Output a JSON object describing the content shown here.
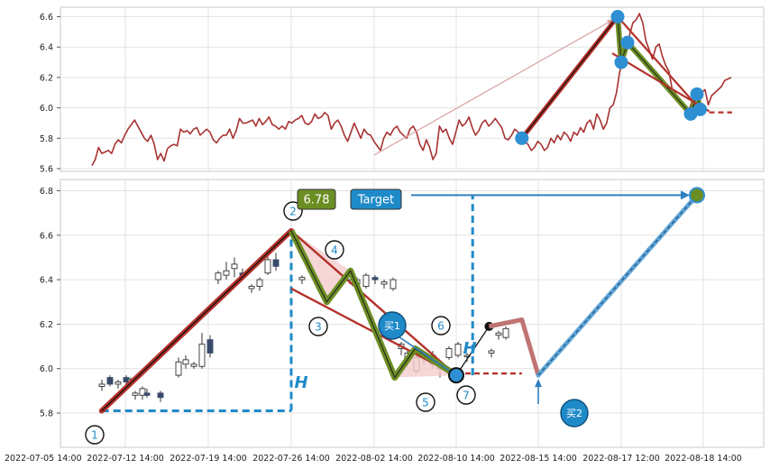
{
  "chart_data": [
    {
      "type": "line",
      "panel": "top",
      "ylim": [
        5.6,
        6.65
      ],
      "yticks": [
        "5.6",
        "5.8",
        "6.0",
        "6.2",
        "6.4",
        "6.6"
      ],
      "grid": true,
      "price_series": [
        5.62,
        5.66,
        5.74,
        5.7,
        5.71,
        5.72,
        5.7,
        5.76,
        5.79,
        5.77,
        5.82,
        5.86,
        5.89,
        5.92,
        5.88,
        5.84,
        5.8,
        5.78,
        5.82,
        5.76,
        5.66,
        5.7,
        5.65,
        5.73,
        5.75,
        5.76,
        5.75,
        5.86,
        5.84,
        5.85,
        5.83,
        5.86,
        5.87,
        5.82,
        5.84,
        5.86,
        5.84,
        5.79,
        5.77,
        5.8,
        5.82,
        5.82,
        5.86,
        5.8,
        5.85,
        5.93,
        5.9,
        5.9,
        5.91,
        5.92,
        5.88,
        5.93,
        5.89,
        5.91,
        5.94,
        5.89,
        5.88,
        5.86,
        5.88,
        5.86,
        5.91,
        5.9,
        5.92,
        5.93,
        5.95,
        5.9,
        5.89,
        5.91,
        5.96,
        5.93,
        5.94,
        5.97,
        5.95,
        5.86,
        5.9,
        5.92,
        5.88,
        5.82,
        5.78,
        5.84,
        5.9,
        5.85,
        5.8,
        5.86,
        5.83,
        5.82,
        5.78,
        5.75,
        5.72,
        5.8,
        5.84,
        5.82,
        5.86,
        5.88,
        5.84,
        5.82,
        5.8,
        5.86,
        5.88,
        5.84,
        5.76,
        5.72,
        5.79,
        5.74,
        5.66,
        5.7,
        5.88,
        5.84,
        5.86,
        5.8,
        5.76,
        5.84,
        5.92,
        5.88,
        5.9,
        5.94,
        5.87,
        5.82,
        5.85,
        5.9,
        5.92,
        5.88,
        5.9,
        5.93,
        5.9,
        5.87,
        5.8,
        5.79,
        5.82,
        5.86,
        5.84,
        5.8,
        5.78,
        5.76,
        5.72,
        5.74,
        5.78,
        5.76,
        5.72,
        5.74,
        5.8,
        5.77,
        5.82,
        5.79,
        5.84,
        5.82,
        5.78,
        5.84,
        5.82,
        5.87,
        5.84,
        5.9,
        5.92,
        5.86,
        5.96,
        5.92,
        5.86,
        5.9,
        6.0,
        6.02,
        6.1,
        6.24,
        6.3,
        6.4,
        6.48,
        6.56,
        6.58,
        6.62,
        6.56,
        6.44,
        6.38,
        6.32,
        6.4,
        6.42,
        6.34,
        6.28,
        6.24,
        6.12,
        6.1,
        6.03,
        6.02,
        6.0,
        5.98,
        6.04,
        6.06,
        6.08,
        6.1,
        6.12,
        6.02,
        6.08,
        6.1,
        6.12,
        6.14,
        6.18,
        6.19,
        6.2
      ],
      "pattern_points": [
        {
          "x": "2022-08-02 14:00",
          "y": 5.69
        },
        {
          "x": "2022-08-14 14:00",
          "y": 5.8
        },
        {
          "x": "2022-08-17 10:00",
          "y": 6.6
        },
        {
          "x": "2022-08-17 12:00",
          "y": 6.3
        },
        {
          "x": "2022-08-17 14:00",
          "y": 6.43
        },
        {
          "x": "2022-08-18 10:00",
          "y": 5.96
        },
        {
          "x": "2022-08-18 12:00",
          "y": 6.09
        },
        {
          "x": "2022-08-18 13:00",
          "y": 5.99
        }
      ],
      "colors": {
        "price": "#a83232",
        "marker": "#2f8fd3",
        "leg": "#6b8e23",
        "trend": "#b3312a"
      }
    },
    {
      "type": "candlestick",
      "panel": "bottom",
      "ylim": [
        5.7,
        6.88
      ],
      "yticks": [
        "5.8",
        "6.0",
        "6.2",
        "6.4",
        "6.6",
        "6.8"
      ],
      "xticks": [
        "2022-07-05 14:00",
        "2022-07-12 14:00",
        "2022-07-19 14:00",
        "2022-07-26 14:00",
        "2022-08-02 14:00",
        "2022-08-10 14:00",
        "2022-08-15 14:00",
        "2022-08-17 12:00",
        "2022-08-18 14:00"
      ],
      "grid": true,
      "candles": [
        {
          "o": 5.92,
          "h": 5.95,
          "l": 5.9,
          "c": 5.93
        },
        {
          "o": 5.96,
          "h": 5.97,
          "l": 5.92,
          "c": 5.93
        },
        {
          "o": 5.93,
          "h": 5.95,
          "l": 5.91,
          "c": 5.94
        },
        {
          "o": 5.96,
          "h": 5.97,
          "l": 5.93,
          "c": 5.94
        },
        {
          "o": 5.94,
          "h": 5.96,
          "l": 5.92,
          "c": 5.95
        },
        {
          "o": 5.88,
          "h": 5.9,
          "l": 5.86,
          "c": 5.89
        },
        {
          "o": 5.88,
          "h": 5.92,
          "l": 5.86,
          "c": 5.91
        },
        {
          "o": 5.89,
          "h": 5.91,
          "l": 5.87,
          "c": 5.88
        },
        {
          "o": 5.89,
          "h": 5.9,
          "l": 5.85,
          "c": 5.87
        },
        {
          "o": 5.97,
          "h": 6.05,
          "l": 5.96,
          "c": 6.03
        },
        {
          "o": 6.02,
          "h": 6.06,
          "l": 6.0,
          "c": 6.04
        },
        {
          "o": 6.01,
          "h": 6.03,
          "l": 6.0,
          "c": 6.02
        },
        {
          "o": 6.01,
          "h": 6.16,
          "l": 6.0,
          "c": 6.11
        },
        {
          "o": 6.13,
          "h": 6.15,
          "l": 6.05,
          "c": 6.07
        },
        {
          "o": 6.4,
          "h": 6.44,
          "l": 6.38,
          "c": 6.43
        },
        {
          "o": 6.42,
          "h": 6.48,
          "l": 6.4,
          "c": 6.44
        },
        {
          "o": 6.45,
          "h": 6.5,
          "l": 6.41,
          "c": 6.47
        },
        {
          "o": 6.43,
          "h": 6.45,
          "l": 6.41,
          "c": 6.42
        },
        {
          "o": 6.36,
          "h": 6.38,
          "l": 6.34,
          "c": 6.37
        },
        {
          "o": 6.37,
          "h": 6.41,
          "l": 6.35,
          "c": 6.4
        },
        {
          "o": 6.43,
          "h": 6.52,
          "l": 6.42,
          "c": 6.49
        },
        {
          "o": 6.49,
          "h": 6.52,
          "l": 6.44,
          "c": 6.46
        },
        {
          "o": 6.4,
          "h": 6.42,
          "l": 6.38,
          "c": 6.41
        },
        {
          "o": 6.32,
          "h": 6.34,
          "l": 6.3,
          "c": 6.33
        },
        {
          "o": 6.4,
          "h": 6.44,
          "l": 6.38,
          "c": 6.43
        },
        {
          "o": 6.38,
          "h": 6.41,
          "l": 6.37,
          "c": 6.4
        },
        {
          "o": 6.37,
          "h": 6.43,
          "l": 6.36,
          "c": 6.42
        },
        {
          "o": 6.41,
          "h": 6.42,
          "l": 6.38,
          "c": 6.4
        },
        {
          "o": 6.38,
          "h": 6.4,
          "l": 6.36,
          "c": 6.39
        },
        {
          "o": 6.36,
          "h": 6.41,
          "l": 6.35,
          "c": 6.4
        },
        {
          "o": 6.09,
          "h": 6.12,
          "l": 6.06,
          "c": 6.11
        },
        {
          "o": 6.03,
          "h": 6.08,
          "l": 6.01,
          "c": 6.07
        },
        {
          "o": 5.99,
          "h": 6.06,
          "l": 5.98,
          "c": 6.05
        },
        {
          "o": 6.05,
          "h": 6.07,
          "l": 6.02,
          "c": 6.06
        },
        {
          "o": 6.06,
          "h": 6.08,
          "l": 6.0,
          "c": 6.02
        },
        {
          "o": 6.0,
          "h": 6.02,
          "l": 5.96,
          "c": 6.01
        },
        {
          "o": 6.05,
          "h": 6.1,
          "l": 6.04,
          "c": 6.09
        },
        {
          "o": 6.06,
          "h": 6.12,
          "l": 6.05,
          "c": 6.11
        },
        {
          "o": 6.06,
          "h": 6.07,
          "l": 6.03,
          "c": 6.06
        },
        {
          "o": 6.07,
          "h": 6.09,
          "l": 6.05,
          "c": 6.08
        },
        {
          "o": 6.15,
          "h": 6.17,
          "l": 6.13,
          "c": 6.16
        },
        {
          "o": 6.14,
          "h": 6.19,
          "l": 6.13,
          "c": 6.18
        }
      ],
      "pattern_points": [
        {
          "label": "1",
          "x": "2022-07-10 14:00",
          "y": 5.81
        },
        {
          "label": "2",
          "x": "2022-07-26 14:00",
          "y": 6.62
        },
        {
          "label": "3",
          "x": "2022-07-29 14:00",
          "y": 6.3
        },
        {
          "label": "4",
          "x": "2022-07-31 14:00",
          "y": 6.44
        },
        {
          "label": "5",
          "x": "2022-08-04 14:00",
          "y": 5.96
        },
        {
          "label": "6",
          "x": "2022-08-06 14:00",
          "y": 6.09
        },
        {
          "label": "7",
          "x": "2022-08-10 14:00",
          "y": 5.97
        }
      ],
      "projection_points": [
        {
          "x": "2022-08-12 14:00",
          "y": 6.19
        },
        {
          "x": "2022-08-14 14:00",
          "y": 6.22
        },
        {
          "x": "2022-08-15 14:00",
          "y": 5.97
        },
        {
          "x": "2022-08-18 12:00",
          "y": 6.78
        }
      ],
      "labels": {
        "price_badge": "6.78",
        "target_badge": "Target",
        "buy1": "买1",
        "buy2": "买2",
        "height_mark": "H"
      },
      "colors": {
        "trend": "#b3312a",
        "leg": "#6b8e23",
        "dash": "#1f8ac8",
        "target": "#2f7fbf",
        "badge_green": "#6b8e23",
        "badge_blue": "#1f8ac8",
        "fill": "#f4cccc"
      }
    }
  ]
}
